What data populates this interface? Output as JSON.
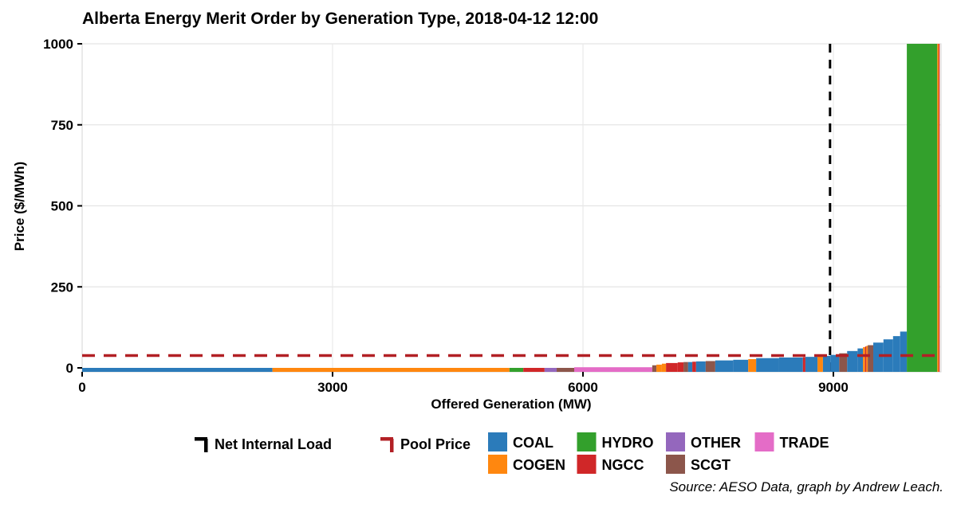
{
  "title": "Alberta Energy Merit Order by Generation Type, 2018-04-12 12:00",
  "source_note": "Source: AESO Data, graph by Andrew Leach.",
  "legend": {
    "line_items": [
      {
        "label": "Net Internal Load",
        "color": "#000000"
      },
      {
        "label": "Pool Price",
        "color": "#b22025"
      }
    ],
    "fuel_row1": [
      "COAL",
      "HYDRO",
      "OTHER",
      "TRADE"
    ],
    "fuel_row2": [
      "COGEN",
      "NGCC",
      "SCGT"
    ]
  },
  "chart_data": {
    "type": "bar",
    "title": "Alberta Energy Merit Order by Generation Type, 2018-04-12 12:00",
    "xlabel": "Offered Generation (MW)",
    "ylabel": "Price ($/MWh)",
    "xlim": [
      0,
      10290
    ],
    "ylim": [
      0,
      1000
    ],
    "xticks": [
      0,
      3000,
      6000,
      9000
    ],
    "yticks": [
      0,
      250,
      500,
      750,
      1000
    ],
    "grid": true,
    "legend_position": "bottom",
    "reference_lines": [
      {
        "name": "net_internal_load",
        "axis": "x",
        "value": 8960,
        "style": "dashed",
        "color": "#000000",
        "label": "Net Internal Load"
      },
      {
        "name": "pool_price",
        "axis": "y",
        "value": 38,
        "style": "dashed",
        "color": "#b22025",
        "label": "Pool Price"
      }
    ],
    "fuel_colors": {
      "COAL": "#2b7bba",
      "COGEN": "#ff870f",
      "HYDRO": "#33a02c",
      "NGCC": "#d02728",
      "OTHER": "#9467bd",
      "SCGT": "#8c564b",
      "TRADE": "#e46cc7"
    },
    "segments": [
      {
        "fuel": "COAL",
        "from_mw": 0,
        "to_mw": 2280,
        "price": 0
      },
      {
        "fuel": "COGEN",
        "from_mw": 2280,
        "to_mw": 5120,
        "price": 0
      },
      {
        "fuel": "HYDRO",
        "from_mw": 5120,
        "to_mw": 5285,
        "price": 0
      },
      {
        "fuel": "NGCC",
        "from_mw": 5285,
        "to_mw": 5540,
        "price": 0
      },
      {
        "fuel": "OTHER",
        "from_mw": 5540,
        "to_mw": 5685,
        "price": 0
      },
      {
        "fuel": "SCGT",
        "from_mw": 5685,
        "to_mw": 5895,
        "price": 0
      },
      {
        "fuel": "TRADE",
        "from_mw": 5895,
        "to_mw": 6830,
        "price": 2
      },
      {
        "fuel": "SCGT",
        "from_mw": 6830,
        "to_mw": 6880,
        "price": 8
      },
      {
        "fuel": "COGEN",
        "from_mw": 6880,
        "to_mw": 6945,
        "price": 10
      },
      {
        "fuel": "COGEN",
        "from_mw": 6945,
        "to_mw": 6995,
        "price": 13
      },
      {
        "fuel": "NGCC",
        "from_mw": 6995,
        "to_mw": 7135,
        "price": 15
      },
      {
        "fuel": "NGCC",
        "from_mw": 7135,
        "to_mw": 7205,
        "price": 17
      },
      {
        "fuel": "SCGT",
        "from_mw": 7205,
        "to_mw": 7260,
        "price": 18
      },
      {
        "fuel": "COAL",
        "from_mw": 7260,
        "to_mw": 7310,
        "price": 18
      },
      {
        "fuel": "NGCC",
        "from_mw": 7310,
        "to_mw": 7355,
        "price": 19
      },
      {
        "fuel": "COAL",
        "from_mw": 7355,
        "to_mw": 7470,
        "price": 20
      },
      {
        "fuel": "SCGT",
        "from_mw": 7470,
        "to_mw": 7585,
        "price": 21
      },
      {
        "fuel": "COAL",
        "from_mw": 7585,
        "to_mw": 7800,
        "price": 23
      },
      {
        "fuel": "COAL",
        "from_mw": 7800,
        "to_mw": 7980,
        "price": 25
      },
      {
        "fuel": "COGEN",
        "from_mw": 7980,
        "to_mw": 8075,
        "price": 27
      },
      {
        "fuel": "COAL",
        "from_mw": 8075,
        "to_mw": 8350,
        "price": 30
      },
      {
        "fuel": "COAL",
        "from_mw": 8350,
        "to_mw": 8635,
        "price": 32
      },
      {
        "fuel": "NGCC",
        "from_mw": 8635,
        "to_mw": 8665,
        "price": 33
      },
      {
        "fuel": "COAL",
        "from_mw": 8665,
        "to_mw": 8810,
        "price": 34
      },
      {
        "fuel": "COGEN",
        "from_mw": 8810,
        "to_mw": 8875,
        "price": 35
      },
      {
        "fuel": "COAL",
        "from_mw": 8875,
        "to_mw": 8965,
        "price": 37
      },
      {
        "fuel": "COAL",
        "from_mw": 8965,
        "to_mw": 9070,
        "price": 40
      },
      {
        "fuel": "SCGT",
        "from_mw": 9070,
        "to_mw": 9165,
        "price": 45
      },
      {
        "fuel": "COAL",
        "from_mw": 9165,
        "to_mw": 9290,
        "price": 52
      },
      {
        "fuel": "COAL",
        "from_mw": 9290,
        "to_mw": 9355,
        "price": 60
      },
      {
        "fuel": "COGEN",
        "from_mw": 9355,
        "to_mw": 9380,
        "price": 64
      },
      {
        "fuel": "NGCC",
        "from_mw": 9380,
        "to_mw": 9395,
        "price": 66
      },
      {
        "fuel": "COGEN",
        "from_mw": 9395,
        "to_mw": 9412,
        "price": 68
      },
      {
        "fuel": "SCGT",
        "from_mw": 9412,
        "to_mw": 9478,
        "price": 70
      },
      {
        "fuel": "COAL",
        "from_mw": 9478,
        "to_mw": 9600,
        "price": 78
      },
      {
        "fuel": "COAL",
        "from_mw": 9600,
        "to_mw": 9715,
        "price": 88
      },
      {
        "fuel": "COAL",
        "from_mw": 9715,
        "to_mw": 9800,
        "price": 98
      },
      {
        "fuel": "COAL",
        "from_mw": 9800,
        "to_mw": 9880,
        "price": 112
      },
      {
        "fuel": "HYDRO",
        "from_mw": 9880,
        "to_mw": 10245,
        "price": 1000
      },
      {
        "fuel": "COGEN",
        "from_mw": 10245,
        "to_mw": 10262,
        "price": 1000
      },
      {
        "fuel": "NGCC",
        "from_mw": 10262,
        "to_mw": 10272,
        "price": 1000
      }
    ]
  }
}
